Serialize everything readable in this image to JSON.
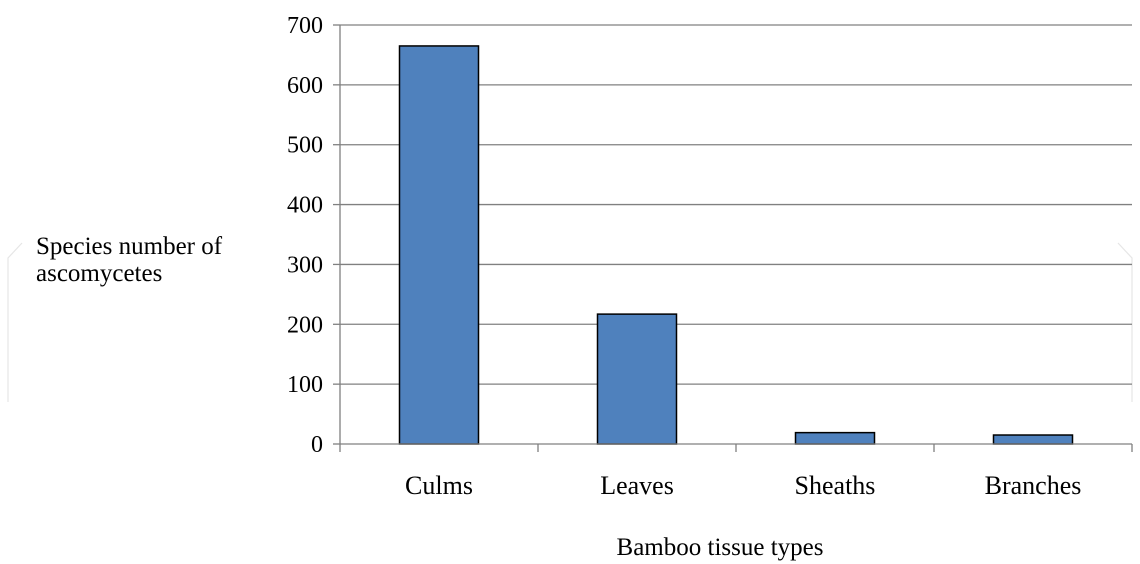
{
  "chart_data": {
    "type": "bar",
    "categories": [
      "Culms",
      "Leaves",
      "Sheaths",
      "Branches"
    ],
    "values": [
      665,
      217,
      19,
      15
    ],
    "title": "",
    "xlabel": "Bamboo tissue types",
    "ylabel_lines": [
      "Species number of",
      "ascomycetes"
    ],
    "ylim": [
      0,
      700
    ],
    "yticks": [
      0,
      100,
      200,
      300,
      400,
      500,
      600,
      700
    ],
    "grid": true,
    "legend": "none",
    "bar_color": "#4f81bd",
    "bar_edge_color": "#000000",
    "grid_color": "#808080"
  }
}
